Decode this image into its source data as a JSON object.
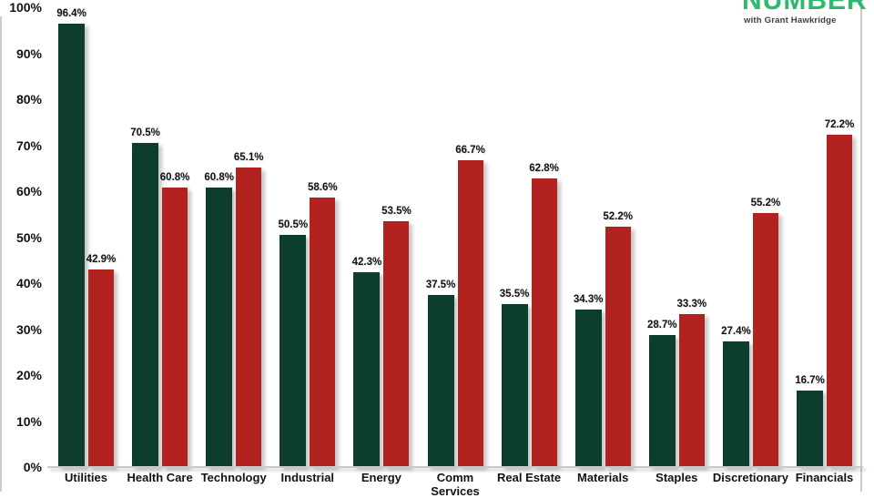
{
  "logo": {
    "brand": "NUMBER",
    "tagline": "with Grant Hawkridge",
    "brand_color": "#2CBA6E"
  },
  "chart_data": {
    "type": "bar",
    "title": "",
    "categories": [
      "Utilities",
      "Health Care",
      "Technology",
      "Industrial",
      "Energy",
      "Comm\nServices",
      "Real Estate",
      "Materials",
      "Staples",
      "Discretionary",
      "Financials"
    ],
    "series": [
      {
        "name": "green",
        "color": "#0D3D2D",
        "values": [
          96.4,
          70.5,
          60.8,
          50.5,
          42.3,
          37.5,
          35.5,
          34.3,
          28.7,
          27.4,
          16.7
        ]
      },
      {
        "name": "red",
        "color": "#B22320",
        "values": [
          42.9,
          60.8,
          65.1,
          58.6,
          53.5,
          66.7,
          62.8,
          52.2,
          33.3,
          55.2,
          72.2
        ]
      }
    ],
    "value_suffix": "%",
    "value_labels_shown": true,
    "y_ticks": [
      "0%",
      "10%",
      "20%",
      "30%",
      "40%",
      "50%",
      "60%",
      "70%",
      "80%",
      "90%",
      "100%"
    ],
    "ylim": [
      0,
      100
    ],
    "grid": false,
    "legend": "none",
    "axis_color": "#c9c9c9",
    "label_color": "#121212"
  }
}
